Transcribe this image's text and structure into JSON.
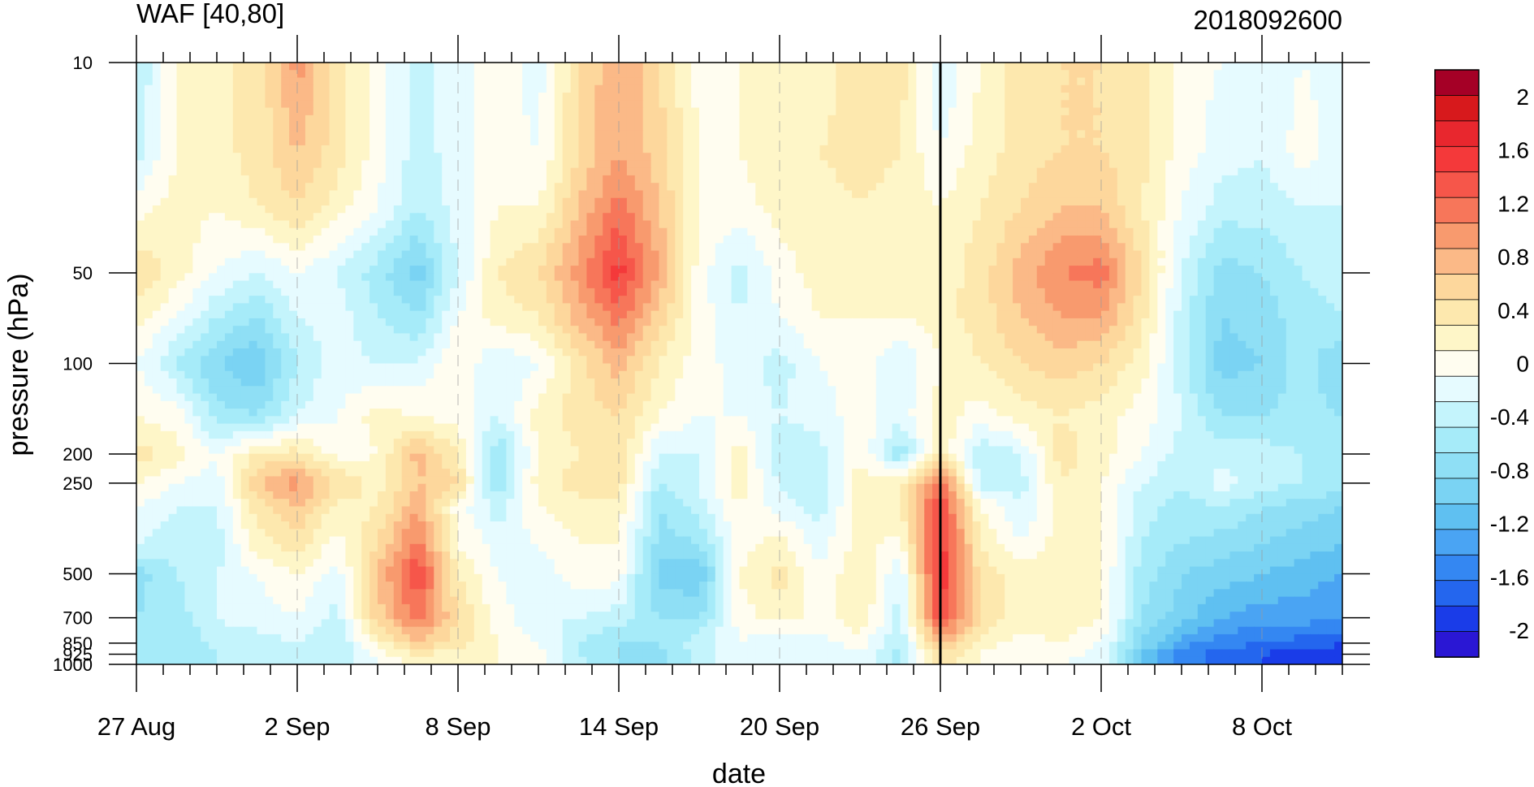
{
  "title_left": "WAF [40,80]",
  "title_right": "2018092600",
  "chart_data": {
    "type": "heatmap",
    "subtype": "filled-contour",
    "title": "WAF [40,80]",
    "run_label": "2018092600",
    "xlabel": "date",
    "ylabel": "pressure (hPa)",
    "x_tick_labels": [
      "27 Aug",
      "2 Sep",
      "8 Sep",
      "14 Sep",
      "20 Sep",
      "26 Sep",
      "2 Oct",
      "8 Oct"
    ],
    "x_tick_day_offsets": [
      0,
      6,
      12,
      18,
      24,
      30,
      36,
      42
    ],
    "x_range_day_offsets": [
      0,
      45
    ],
    "marker_date": "26 Sep",
    "y_scale": "log",
    "y_reversed": true,
    "y_ticks": [
      10,
      50,
      100,
      200,
      250,
      500,
      700,
      850,
      925,
      1000
    ],
    "y_tick_labels": [
      "10",
      "50",
      "100",
      "200",
      "250",
      "500",
      "700",
      "850",
      "925",
      "1000"
    ],
    "ylim": [
      1000,
      10
    ],
    "colorbar": {
      "levels": [
        -2.2,
        -2.0,
        -1.8,
        -1.6,
        -1.4,
        -1.2,
        -1.0,
        -0.8,
        -0.6,
        -0.4,
        -0.2,
        0,
        0.2,
        0.4,
        0.6,
        0.8,
        1.0,
        1.2,
        1.4,
        1.6,
        1.8,
        2.0,
        2.2
      ],
      "labels": [
        "2",
        "1.6",
        "1.2",
        "0.8",
        "0.4",
        "0",
        "-0.4",
        "-0.8",
        "-1.2",
        "-1.6",
        "-2"
      ],
      "label_values": [
        2.0,
        1.6,
        1.2,
        0.8,
        0.4,
        0,
        -0.4,
        -0.8,
        -1.2,
        -1.6,
        -2.0
      ],
      "colors_top_to_bottom": [
        "#a50026",
        "#d7191c",
        "#e8272e",
        "#f4393a",
        "#f6564a",
        "#f7765a",
        "#f89a6e",
        "#fbb987",
        "#fdd79c",
        "#fde8ae",
        "#fef6c8",
        "#fffdf0",
        "#e6fbff",
        "#c4f4fc",
        "#a6ebf9",
        "#8fdff5",
        "#7ad3f3",
        "#5fc0f1",
        "#4aa4f3",
        "#3487f2",
        "#2466ee",
        "#1a3ce8",
        "#2a17d4"
      ]
    },
    "x": [
      0,
      1.5,
      3,
      4.5,
      6,
      7.5,
      9,
      10.5,
      12,
      13.5,
      15,
      16.5,
      18,
      19.5,
      21,
      22.5,
      24,
      25.5,
      27,
      28.5,
      30,
      31.5,
      33,
      34.5,
      36,
      37.5,
      39,
      40.5,
      42,
      43.5,
      45
    ],
    "y_levels": [
      10,
      20,
      30,
      50,
      70,
      100,
      150,
      200,
      250,
      300,
      400,
      500,
      700,
      850,
      925,
      1000
    ],
    "z": [
      [
        -0.4,
        0.2,
        0.4,
        0.4,
        1.1,
        0.5,
        0.1,
        -0.3,
        -0.1,
        0.1,
        -0.1,
        0.6,
        1.0,
        0.6,
        0.1,
        0.2,
        0.4,
        0.3,
        0.5,
        0.5,
        -0.2,
        0.2,
        0.5,
        0.6,
        0.6,
        0.5,
        0.1,
        0.0,
        -0.1,
        0.0,
        -0.1
      ],
      [
        -0.3,
        0.2,
        0.3,
        0.5,
        0.8,
        0.5,
        0.1,
        -0.3,
        -0.1,
        0.1,
        0.0,
        0.6,
        1.0,
        0.7,
        0.2,
        0.2,
        0.4,
        0.4,
        0.5,
        0.4,
        0.0,
        0.3,
        0.5,
        0.6,
        0.6,
        0.5,
        0.1,
        -0.1,
        -0.2,
        0.1,
        -0.1
      ],
      [
        0.1,
        0.3,
        0.2,
        0.4,
        0.6,
        0.3,
        0.0,
        -0.4,
        -0.1,
        0.2,
        0.2,
        0.8,
        1.3,
        0.8,
        0.2,
        0.1,
        0.3,
        0.3,
        0.4,
        0.3,
        0.2,
        0.4,
        0.6,
        0.8,
        0.8,
        0.4,
        0.0,
        -0.3,
        -0.3,
        -0.2,
        -0.2
      ],
      [
        0.6,
        0.3,
        0.0,
        -0.2,
        0.0,
        -0.2,
        -0.5,
        -0.9,
        -0.2,
        0.4,
        0.6,
        1.1,
        1.7,
        1.0,
        0.1,
        -0.3,
        0.1,
        0.3,
        0.3,
        0.3,
        0.3,
        0.5,
        0.9,
        1.2,
        1.3,
        0.6,
        -0.2,
        -0.7,
        -0.6,
        -0.4,
        -0.3
      ],
      [
        0.3,
        0.0,
        -0.4,
        -0.6,
        -0.2,
        -0.1,
        -0.4,
        -0.6,
        0.0,
        0.3,
        0.4,
        0.9,
        1.3,
        0.7,
        0.1,
        -0.2,
        0.0,
        0.2,
        0.2,
        0.2,
        0.3,
        0.5,
        0.8,
        1.0,
        1.0,
        0.5,
        -0.3,
        -0.8,
        -0.7,
        -0.5,
        -0.4
      ],
      [
        0.0,
        -0.4,
        -0.8,
        -1.0,
        -0.4,
        -0.1,
        -0.2,
        -0.2,
        0.2,
        -0.2,
        0.0,
        0.5,
        0.9,
        0.4,
        0.1,
        -0.1,
        -0.3,
        0.0,
        0.1,
        -0.2,
        0.2,
        0.4,
        0.6,
        0.7,
        0.6,
        0.3,
        -0.3,
        -0.9,
        -0.8,
        -0.5,
        -0.8
      ],
      [
        0.2,
        0.1,
        -0.5,
        -0.6,
        -0.2,
        0.0,
        0.3,
        0.2,
        0.1,
        -0.2,
        0.3,
        0.5,
        0.6,
        0.2,
        0.0,
        0.0,
        -0.2,
        -0.1,
        0.1,
        -0.1,
        0.3,
        0.1,
        0.3,
        0.4,
        0.3,
        0.1,
        -0.2,
        -0.6,
        -0.6,
        -0.5,
        -0.6
      ],
      [
        0.5,
        0.3,
        0.0,
        0.4,
        0.5,
        0.1,
        0.2,
        0.9,
        0.4,
        -0.6,
        0.2,
        0.4,
        0.6,
        -0.2,
        -0.2,
        0.3,
        -0.4,
        -0.3,
        0.2,
        -0.6,
        0.4,
        -0.4,
        -0.2,
        0.5,
        0.3,
        0.0,
        -0.3,
        -0.3,
        -0.3,
        -0.4,
        -0.5
      ],
      [
        0.2,
        0.0,
        -0.1,
        0.8,
        1.1,
        0.6,
        0.3,
        0.8,
        0.6,
        -0.6,
        0.3,
        0.5,
        0.5,
        -0.4,
        -0.2,
        0.3,
        -0.2,
        -0.4,
        0.3,
        0.4,
        1.4,
        -0.3,
        -0.3,
        0.4,
        0.2,
        -0.2,
        -0.4,
        -0.1,
        -0.3,
        -0.4,
        -0.5
      ],
      [
        0.0,
        -0.2,
        -0.2,
        0.5,
        0.8,
        0.3,
        0.4,
        1.0,
        0.1,
        -0.3,
        0.2,
        0.3,
        0.3,
        -0.6,
        -0.3,
        0.2,
        -0.1,
        -0.3,
        0.3,
        0.4,
        1.6,
        0.2,
        -0.2,
        0.3,
        0.2,
        -0.3,
        -0.5,
        -0.4,
        -0.6,
        -0.7,
        -0.8
      ],
      [
        -0.2,
        -0.3,
        -0.3,
        0.3,
        0.5,
        0.1,
        0.6,
        1.3,
        0.2,
        -0.1,
        0.0,
        0.2,
        0.2,
        -0.7,
        -0.6,
        0.1,
        0.3,
        -0.1,
        0.3,
        0.1,
        1.7,
        0.4,
        0.0,
        0.3,
        0.2,
        -0.4,
        -0.6,
        -0.7,
        -0.8,
        -0.9,
        -1.0
      ],
      [
        -0.7,
        -0.4,
        -0.2,
        0.0,
        0.2,
        -0.1,
        0.8,
        1.6,
        0.4,
        0.0,
        -0.1,
        0.1,
        0.1,
        -0.9,
        -1.0,
        0.2,
        0.5,
        0.0,
        0.4,
        -0.2,
        1.8,
        0.5,
        0.3,
        0.4,
        0.2,
        -0.5,
        -0.8,
        -0.9,
        -1.0,
        -1.1,
        -1.2
      ],
      [
        -0.6,
        -0.5,
        -0.2,
        -0.1,
        0.0,
        -0.3,
        0.7,
        1.3,
        0.6,
        0.1,
        -0.2,
        -0.2,
        -0.3,
        -0.6,
        -0.6,
        0.1,
        0.3,
        0.1,
        0.4,
        -0.3,
        1.6,
        0.6,
        0.3,
        0.4,
        0.2,
        -0.6,
        -0.9,
        -1.2,
        -1.3,
        -1.3,
        -1.4
      ],
      [
        -0.5,
        -0.6,
        -0.3,
        -0.3,
        -0.2,
        -0.4,
        0.3,
        0.8,
        0.5,
        0.2,
        0.0,
        -0.4,
        -0.6,
        -0.6,
        -0.3,
        0.0,
        -0.2,
        -0.1,
        0.1,
        -0.4,
        0.9,
        0.3,
        0.1,
        0.2,
        0.0,
        -0.8,
        -1.3,
        -1.5,
        -1.6,
        -1.7,
        -1.8
      ],
      [
        -0.5,
        -0.6,
        -0.4,
        -0.4,
        -0.3,
        -0.4,
        0.1,
        0.4,
        0.3,
        0.2,
        0.1,
        -0.4,
        -0.6,
        -0.7,
        -0.3,
        -0.1,
        -0.2,
        -0.2,
        0.0,
        -0.5,
        0.6,
        0.2,
        0.0,
        0.1,
        -0.1,
        -1.0,
        -1.5,
        -1.7,
        -1.8,
        -1.9,
        -1.9
      ],
      [
        -0.5,
        -0.6,
        -0.4,
        -0.4,
        -0.3,
        -0.4,
        0.0,
        0.3,
        0.2,
        0.2,
        0.1,
        -0.3,
        -0.6,
        -0.7,
        -0.3,
        -0.1,
        -0.2,
        -0.2,
        0.0,
        -0.5,
        0.5,
        0.2,
        0.0,
        0.0,
        -0.1,
        -1.1,
        -1.5,
        -1.7,
        -1.8,
        -1.9,
        -1.9
      ]
    ]
  }
}
